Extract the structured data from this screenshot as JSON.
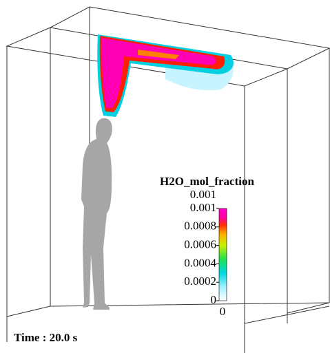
{
  "colorbar": {
    "title": "H2O_mol_fraction",
    "range": [
      0,
      0.001
    ],
    "ticks": [
      0.001,
      0.0008,
      0.0006,
      0.0004,
      0.0002,
      0
    ]
  },
  "time_label": "Time : 20.0 s"
}
